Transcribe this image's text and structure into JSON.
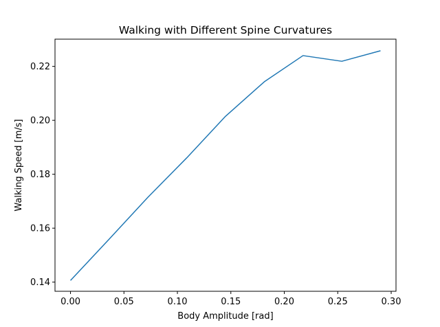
{
  "chart_data": {
    "type": "line",
    "title": "Walking with Different Spine Curvatures",
    "xlabel": "Body Amplitude [rad]",
    "ylabel": "Walking Speed [m/s]",
    "xlim": [
      -0.0145,
      0.3045
    ],
    "ylim": [
      0.1366,
      0.2301
    ],
    "xticks": [
      0.0,
      0.05,
      0.1,
      0.15,
      0.2,
      0.25,
      0.3
    ],
    "xtick_labels": [
      "0.00",
      "0.05",
      "0.10",
      "0.15",
      "0.20",
      "0.25",
      "0.30"
    ],
    "yticks": [
      0.14,
      0.16,
      0.18,
      0.2,
      0.22
    ],
    "ytick_labels": [
      "0.14",
      "0.16",
      "0.18",
      "0.20",
      "0.22"
    ],
    "grid": false,
    "series": [
      {
        "color": "#1f77b4",
        "x": [
          0.0,
          0.0363,
          0.0725,
          0.1088,
          0.145,
          0.1813,
          0.2175,
          0.2538,
          0.29
        ],
        "y": [
          0.1406,
          0.156,
          0.1715,
          0.1861,
          0.2015,
          0.2143,
          0.224,
          0.2219,
          0.2258
        ]
      }
    ]
  }
}
